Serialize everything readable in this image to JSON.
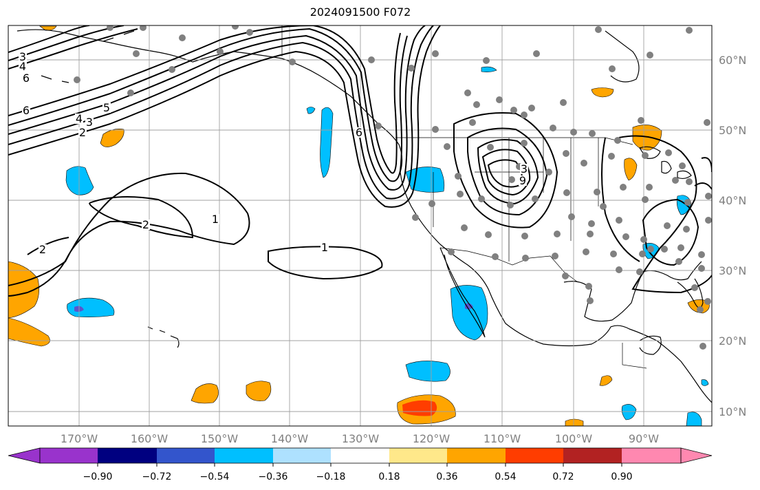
{
  "title": "2024091500 F072",
  "map": {
    "lon_ticks": [
      "170°W",
      "160°W",
      "150°W",
      "140°W",
      "130°W",
      "120°W",
      "110°W",
      "100°W",
      "90°W"
    ],
    "lat_ticks": [
      "60°N",
      "50°N",
      "40°N",
      "30°N",
      "20°N",
      "10°N"
    ],
    "colors": {
      "land_outline": "#000000",
      "grid": "#a0a0a0",
      "station": "#808080"
    }
  },
  "contour_labels": [
    "3",
    "4",
    "6",
    "6",
    "4",
    "3",
    "5",
    "2",
    "2",
    "1",
    "2",
    "1",
    "6",
    "3",
    "9"
  ],
  "colorbar": {
    "ticks": [
      "−0.90",
      "−0.72",
      "−0.54",
      "−0.36",
      "−0.18",
      "0.18",
      "0.36",
      "0.54",
      "0.72",
      "0.90"
    ],
    "colors": [
      "#9933cc",
      "#000080",
      "#3355cc",
      "#00bfff",
      "#aee1ff",
      "#ffffff",
      "#ffe88a",
      "#ffa500",
      "#ff3d00",
      "#b22222",
      "#ff88b0"
    ]
  }
}
